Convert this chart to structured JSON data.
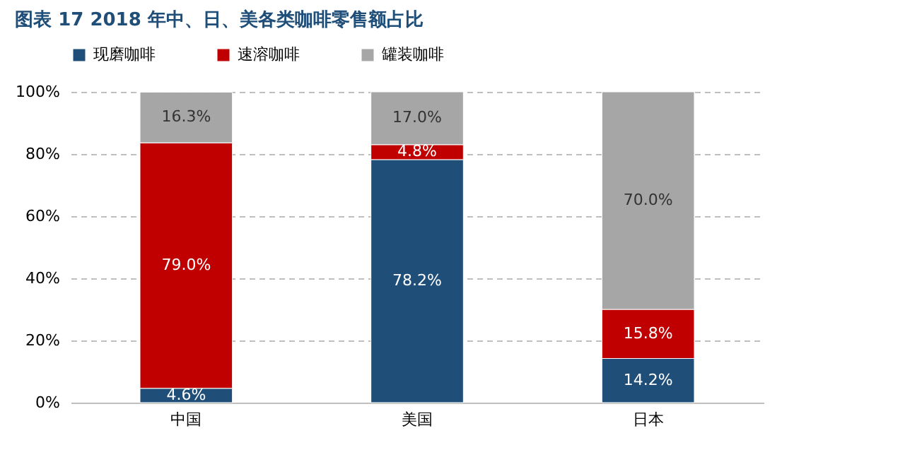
{
  "chart_data": {
    "type": "bar",
    "stacked": true,
    "title": "图表 17   2018 年中、日、美各类咖啡零售额占比",
    "categories": [
      "中国",
      "美国",
      "日本"
    ],
    "series": [
      {
        "name": "现磨咖啡",
        "color": "#1f4e79",
        "values": [
          4.6,
          78.2,
          14.2
        ],
        "value_labels": [
          "4.6%",
          "78.2%",
          "14.2%"
        ]
      },
      {
        "name": "速溶咖啡",
        "color": "#c00000",
        "values": [
          79.0,
          4.8,
          15.8
        ],
        "value_labels": [
          "79.0%",
          "4.8%",
          "15.8%"
        ]
      },
      {
        "name": "罐装咖啡",
        "color": "#a6a6a6",
        "values": [
          16.3,
          17.0,
          70.0
        ],
        "value_labels": [
          "16.3%",
          "17.0%",
          "70.0%"
        ]
      }
    ],
    "ylim": [
      0,
      100
    ],
    "yticks": [
      {
        "value": 0,
        "label": "0%"
      },
      {
        "value": 20,
        "label": "20%"
      },
      {
        "value": 40,
        "label": "40%"
      },
      {
        "value": 60,
        "label": "60%"
      },
      {
        "value": 80,
        "label": "80%"
      },
      {
        "value": 100,
        "label": "100%"
      }
    ],
    "grid": "y",
    "legend": "top"
  }
}
